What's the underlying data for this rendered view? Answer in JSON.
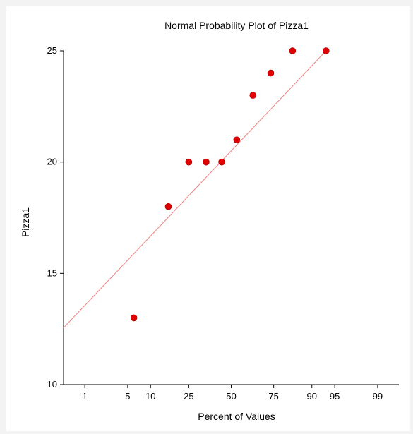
{
  "chart_data": {
    "type": "scatter",
    "title": "Normal Probability Plot of Pizza1",
    "xlabel": "Percent of Values",
    "ylabel": "Pizza1",
    "xscale": "normal-probability",
    "xlim": [
      0.386,
      99.614
    ],
    "ylim": [
      10,
      25
    ],
    "xticks": [
      1,
      5,
      10,
      25,
      50,
      75,
      90,
      95,
      99
    ],
    "yticks": [
      10,
      15,
      20,
      25
    ],
    "grid": false,
    "marker_color": "#e00000",
    "line_color": "#f08080",
    "series": [
      {
        "x": [
          6.1,
          15.9,
          25.0,
          34.5,
          44.0,
          53.5,
          63.5,
          73.5,
          83.5,
          93.4
        ],
        "values": [
          13,
          18,
          20,
          20,
          20,
          21,
          23,
          24,
          25,
          25
        ]
      }
    ],
    "fit_line": {
      "x": [
        0.386,
        93.4
      ],
      "y": [
        12.55,
        25
      ]
    }
  }
}
